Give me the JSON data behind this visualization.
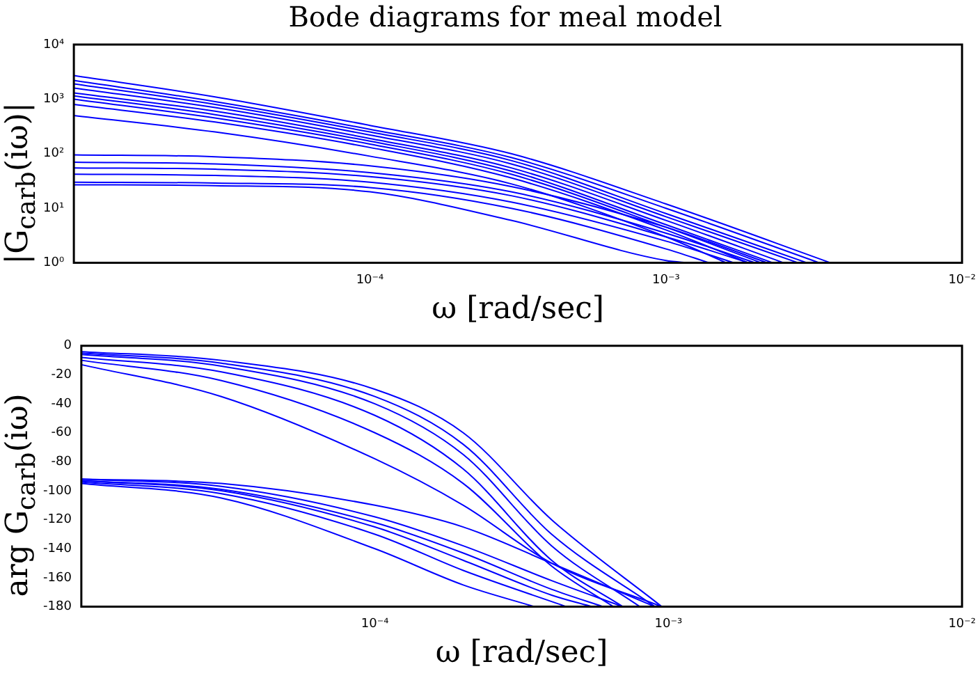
{
  "chart_data": [
    {
      "type": "line",
      "title": "Bode diagrams for meal model",
      "xlabel": "ω [rad/sec]",
      "ylabel": "|G$_{carb}$(iω)|",
      "log": "xy",
      "grid": false,
      "legend": false,
      "marker": "none",
      "line_style": "solid",
      "xlim": [
        1e-05,
        0.01
      ],
      "xticks": [
        {
          "value": 1e-05,
          "label": null
        },
        {
          "value": 0.0001,
          "label": "10⁻⁴"
        },
        {
          "value": 0.001,
          "label": "10⁻³"
        },
        {
          "value": 0.01,
          "label": "10⁻²"
        }
      ],
      "ylim": [
        1,
        10000
      ],
      "yticks": [
        {
          "value": 1,
          "label": "10⁰"
        },
        {
          "value": 10,
          "label": "10¹"
        },
        {
          "value": 100,
          "label": "10²"
        },
        {
          "value": 1000,
          "label": "10³"
        },
        {
          "value": 10000,
          "label": "10⁴"
        }
      ],
      "series": [
        {
          "color": "#0000ff",
          "x": [
            1e-05,
            3e-05,
            0.0001,
            0.0003,
            0.001,
            0.0036
          ],
          "values": [
            2700,
            1100,
            330,
            100,
            12,
            1
          ]
        },
        {
          "color": "#0000ff",
          "x": [
            1e-05,
            3e-05,
            0.0001,
            0.0003,
            0.001,
            0.0033
          ],
          "values": [
            2200,
            900,
            280,
            85,
            10,
            1
          ]
        },
        {
          "color": "#0000ff",
          "x": [
            1e-05,
            3e-05,
            0.0001,
            0.0003,
            0.001,
            0.003
          ],
          "values": [
            1900,
            800,
            250,
            75,
            8,
            1
          ]
        },
        {
          "color": "#0000ff",
          "x": [
            1e-05,
            3e-05,
            0.0001,
            0.0003,
            0.001,
            0.0028
          ],
          "values": [
            1600,
            700,
            220,
            65,
            7,
            1
          ]
        },
        {
          "color": "#0000ff",
          "x": [
            1e-05,
            3e-05,
            0.0001,
            0.0003,
            0.001,
            0.0025
          ],
          "values": [
            1300,
            600,
            190,
            55,
            6,
            1
          ]
        },
        {
          "color": "#0000ff",
          "x": [
            1e-05,
            3e-05,
            0.0001,
            0.0003,
            0.001,
            0.0023
          ],
          "values": [
            1150,
            520,
            170,
            48,
            5,
            1
          ]
        },
        {
          "color": "#0000ff",
          "x": [
            1e-05,
            3e-05,
            0.0001,
            0.0003,
            0.001,
            0.0021
          ],
          "values": [
            1000,
            450,
            150,
            42,
            4.5,
            1
          ]
        },
        {
          "color": "#0000ff",
          "x": [
            1e-05,
            3e-05,
            0.0001,
            0.0003,
            0.001,
            0.0019
          ],
          "values": [
            800,
            380,
            130,
            36,
            4,
            1
          ]
        },
        {
          "color": "#0000ff",
          "x": [
            1e-05,
            3e-05,
            0.0001,
            0.0003,
            0.001,
            0.0016
          ],
          "values": [
            500,
            250,
            90,
            28,
            3,
            1
          ]
        },
        {
          "color": "#0000ff",
          "x": [
            1e-05,
            3e-05,
            0.0001,
            0.0003,
            0.001,
            0.0022
          ],
          "values": [
            95,
            88,
            60,
            25,
            4.5,
            1
          ]
        },
        {
          "color": "#0000ff",
          "x": [
            1e-05,
            3e-05,
            0.0001,
            0.0003,
            0.001,
            0.002
          ],
          "values": [
            70,
            65,
            45,
            20,
            3.5,
            1
          ]
        },
        {
          "color": "#0000ff",
          "x": [
            1e-05,
            3e-05,
            0.0001,
            0.0003,
            0.001,
            0.0019
          ],
          "values": [
            55,
            52,
            38,
            17,
            3,
            1
          ]
        },
        {
          "color": "#0000ff",
          "x": [
            1e-05,
            3e-05,
            0.0001,
            0.0003,
            0.001,
            0.0017
          ],
          "values": [
            42,
            40,
            30,
            13,
            2.5,
            1
          ]
        },
        {
          "color": "#0000ff",
          "x": [
            1e-05,
            3e-05,
            0.0001,
            0.0003,
            0.001,
            0.0014
          ],
          "values": [
            30,
            29,
            24,
            10,
            1.8,
            1
          ]
        },
        {
          "color": "#0000ff",
          "x": [
            1e-05,
            3e-05,
            0.0001,
            0.0003,
            0.001,
            0.0012
          ],
          "values": [
            27,
            26,
            20,
            6,
            1.1,
            1
          ]
        }
      ]
    },
    {
      "type": "line",
      "xlabel": "ω [rad/sec]",
      "ylabel": "arg G$_{carb}$(iω)",
      "log": "x",
      "grid": false,
      "legend": false,
      "marker": "none",
      "line_style": "solid",
      "xlim": [
        1e-05,
        0.01
      ],
      "xticks": [
        {
          "value": 1e-05,
          "label": null
        },
        {
          "value": 0.0001,
          "label": "10⁻⁴"
        },
        {
          "value": 0.001,
          "label": "10⁻³"
        },
        {
          "value": 0.01,
          "label": "10⁻²"
        }
      ],
      "ylim": [
        -180,
        0
      ],
      "yticks": [
        -180,
        -160,
        -140,
        -120,
        -100,
        -80,
        -60,
        -40,
        -20,
        0
      ],
      "series": [
        {
          "color": "#0000ff",
          "x": [
            1e-05,
            3e-05,
            0.0001,
            0.0002,
            0.0004,
            0.00095
          ],
          "values": [
            -4,
            -10,
            -30,
            -60,
            -120,
            -180
          ]
        },
        {
          "color": "#0000ff",
          "x": [
            1e-05,
            3e-05,
            0.0001,
            0.0002,
            0.0004,
            0.0009
          ],
          "values": [
            -5,
            -12,
            -35,
            -68,
            -130,
            -180
          ]
        },
        {
          "color": "#0000ff",
          "x": [
            1e-05,
            3e-05,
            0.0001,
            0.0002,
            0.0004,
            0.0008
          ],
          "values": [
            -6,
            -14,
            -40,
            -75,
            -138,
            -180
          ]
        },
        {
          "color": "#0000ff",
          "x": [
            1e-05,
            3e-05,
            0.0001,
            0.0002,
            0.0004,
            0.0007
          ],
          "values": [
            -8,
            -18,
            -48,
            -85,
            -148,
            -180
          ]
        },
        {
          "color": "#0000ff",
          "x": [
            1e-05,
            3e-05,
            0.0001,
            0.0002,
            0.0004,
            0.00065
          ],
          "values": [
            -10,
            -24,
            -60,
            -95,
            -152,
            -180
          ]
        },
        {
          "color": "#0000ff",
          "x": [
            1e-05,
            3e-05,
            0.0001,
            0.0002,
            0.0004,
            0.00095
          ],
          "values": [
            -13,
            -35,
            -78,
            -110,
            -150,
            -180
          ]
        },
        {
          "color": "#0000ff",
          "x": [
            1e-05,
            3e-05,
            0.0001,
            0.0002,
            0.0004,
            0.0009
          ],
          "values": [
            -92,
            -95,
            -110,
            -125,
            -150,
            -180
          ]
        },
        {
          "color": "#0000ff",
          "x": [
            1e-05,
            3e-05,
            0.0001,
            0.0002,
            0.0004,
            0.0007
          ],
          "values": [
            -92,
            -97,
            -118,
            -138,
            -162,
            -180
          ]
        },
        {
          "color": "#0000ff",
          "x": [
            1e-05,
            3e-05,
            0.0001,
            0.0002,
            0.0004,
            0.0006
          ],
          "values": [
            -93,
            -99,
            -122,
            -143,
            -168,
            -180
          ]
        },
        {
          "color": "#0000ff",
          "x": [
            1e-05,
            3e-05,
            0.0001,
            0.0002,
            0.0004,
            0.00055
          ],
          "values": [
            -93,
            -100,
            -125,
            -148,
            -172,
            -180
          ]
        },
        {
          "color": "#0000ff",
          "x": [
            1e-05,
            3e-05,
            0.0001,
            0.0002,
            0.00045
          ],
          "values": [
            -94,
            -102,
            -130,
            -155,
            -180
          ]
        },
        {
          "color": "#0000ff",
          "x": [
            1e-05,
            3e-05,
            0.0001,
            0.0002,
            0.00035
          ],
          "values": [
            -95,
            -105,
            -140,
            -165,
            -180
          ]
        }
      ]
    }
  ]
}
